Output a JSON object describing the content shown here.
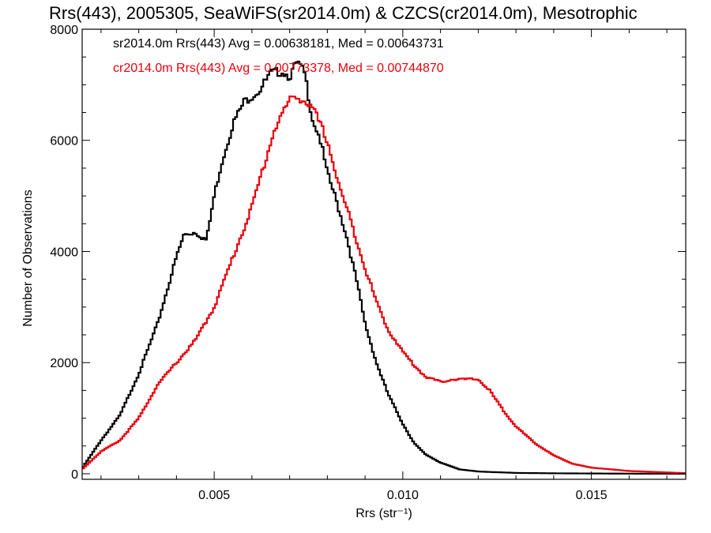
{
  "chart_data": {
    "type": "line",
    "title": "Rrs(443), 2005305, SeaWiFS(sr2014.0m) & CZCS(cr2014.0m), Mesotrophic",
    "xlabel": "Rrs (str⁻¹)",
    "ylabel": "Number of Observations",
    "xlim": [
      0.0015,
      0.0175
    ],
    "ylim": [
      -100,
      8000
    ],
    "xticks": [
      0.005,
      0.01,
      0.015
    ],
    "xtick_labels": [
      "0.005",
      "0.010",
      "0.015"
    ],
    "yticks": [
      0,
      2000,
      4000,
      6000,
      8000
    ],
    "ytick_labels": [
      "0",
      "2000",
      "4000",
      "6000",
      "8000"
    ],
    "grid": false,
    "legend_position": "top-left",
    "series": [
      {
        "name": "sr2014.0m Rrs(443) Avg = 0.00638181, Med = 0.00643731",
        "color": "#000000",
        "x": [
          0.0015,
          0.002,
          0.0025,
          0.003,
          0.0035,
          0.004,
          0.0042,
          0.0045,
          0.0048,
          0.005,
          0.0052,
          0.0055,
          0.0058,
          0.006,
          0.0062,
          0.0065,
          0.0068,
          0.007,
          0.0072,
          0.0074,
          0.0076,
          0.0078,
          0.008,
          0.0082,
          0.0085,
          0.0088,
          0.009,
          0.0093,
          0.0096,
          0.01,
          0.0103,
          0.0106,
          0.011,
          0.0115,
          0.012,
          0.013,
          0.014,
          0.015,
          0.016,
          0.0175
        ],
        "y": [
          100,
          600,
          1050,
          1800,
          2700,
          3900,
          4300,
          4350,
          4200,
          5000,
          5600,
          6300,
          6700,
          6800,
          6900,
          7200,
          7250,
          7150,
          7400,
          7200,
          6400,
          6050,
          5400,
          5000,
          4300,
          3400,
          2700,
          2000,
          1450,
          900,
          550,
          350,
          200,
          80,
          40,
          15,
          8,
          5,
          2,
          0
        ]
      },
      {
        "name": "cr2014.0m Rrs(443) Avg = 0.00773378, Med = 0.00744870",
        "color": "#e8000b",
        "x": [
          0.0015,
          0.002,
          0.0025,
          0.003,
          0.0035,
          0.004,
          0.0045,
          0.005,
          0.0055,
          0.006,
          0.0063,
          0.0066,
          0.0069,
          0.0071,
          0.0073,
          0.0075,
          0.0077,
          0.008,
          0.0083,
          0.0086,
          0.009,
          0.0093,
          0.0096,
          0.01,
          0.0103,
          0.0106,
          0.011,
          0.0113,
          0.0116,
          0.012,
          0.0123,
          0.0126,
          0.013,
          0.0135,
          0.014,
          0.0145,
          0.015,
          0.016,
          0.0175
        ],
        "y": [
          80,
          400,
          600,
          1000,
          1600,
          2000,
          2400,
          3000,
          3900,
          4800,
          5500,
          6200,
          6600,
          6800,
          6750,
          6650,
          6450,
          6000,
          5200,
          4600,
          3700,
          3100,
          2600,
          2200,
          1950,
          1750,
          1650,
          1700,
          1700,
          1700,
          1500,
          1200,
          850,
          550,
          330,
          180,
          110,
          50,
          10
        ]
      }
    ]
  }
}
